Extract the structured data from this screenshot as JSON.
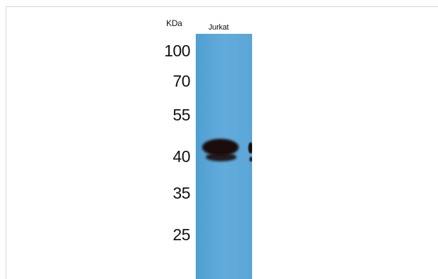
{
  "unit_label": "KDa",
  "lane_label": "Jurkat",
  "markers": [
    {
      "label": "100",
      "value": 100
    },
    {
      "label": "70",
      "value": 70
    },
    {
      "label": "55",
      "value": 55
    },
    {
      "label": "40",
      "value": 40
    },
    {
      "label": "35",
      "value": 35
    },
    {
      "label": "25",
      "value": 25
    }
  ],
  "membrane_color": "#5da8d8",
  "band_color": "#1a1010"
}
